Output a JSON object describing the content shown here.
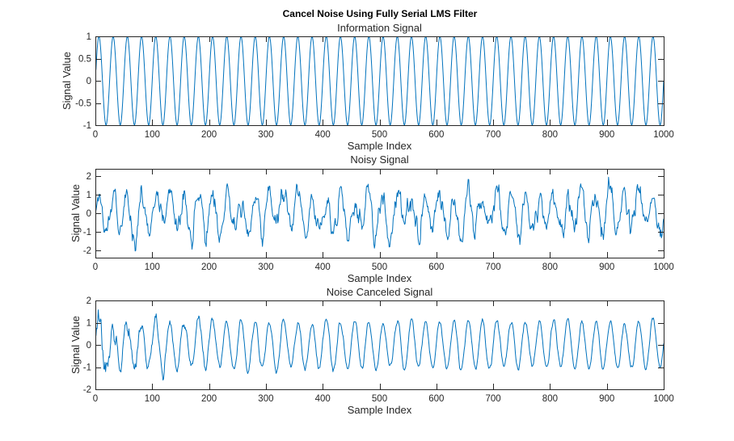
{
  "figure": {
    "title": "Cancel Noise Using Fully Serial LMS Filter"
  },
  "colors": {
    "line": "#0072BD",
    "axis": "#262626",
    "background": "#ffffff"
  },
  "chart_data": [
    {
      "type": "line",
      "title": "Information Signal",
      "xlabel": "Sample Index",
      "ylabel": "Signal Value",
      "xlim": [
        0,
        1000
      ],
      "ylim": [
        -1,
        1
      ],
      "xticks": [
        "0",
        "100",
        "200",
        "300",
        "400",
        "500",
        "600",
        "700",
        "800",
        "900",
        "1000"
      ],
      "yticks": [
        "-1",
        "-0.5",
        "0",
        "0.5",
        "1"
      ],
      "grid": false,
      "x": {
        "start": 1,
        "end": 1000,
        "count": 1000
      },
      "series": [
        {
          "model": "sine",
          "amplitude": 1,
          "period_samples": 25,
          "phase": 0
        }
      ]
    },
    {
      "type": "line",
      "title": "Noisy Signal",
      "xlabel": "Sample Index",
      "ylabel": "Signal Value",
      "xlim": [
        0,
        1000
      ],
      "ylim": [
        -2.4,
        2.4
      ],
      "xticks": [
        "0",
        "100",
        "200",
        "300",
        "400",
        "500",
        "600",
        "700",
        "800",
        "900",
        "1000"
      ],
      "yticks": [
        "-2",
        "-1",
        "0",
        "1",
        "2"
      ],
      "grid": false,
      "x": {
        "start": 1,
        "end": 1000,
        "count": 1000
      },
      "series": [
        {
          "model": "sine_plus_noise",
          "amplitude": 1,
          "period_samples": 25,
          "phase": 0,
          "noise_std": 0.6,
          "approx_range": [
            -2.4,
            2.4
          ]
        }
      ]
    },
    {
      "type": "line",
      "title": "Noise Canceled Signal",
      "xlabel": "Sample Index",
      "ylabel": "Signal Value",
      "xlim": [
        0,
        1000
      ],
      "ylim": [
        -2,
        2
      ],
      "xticks": [
        "0",
        "100",
        "200",
        "300",
        "400",
        "500",
        "600",
        "700",
        "800",
        "900",
        "1000"
      ],
      "yticks": [
        "-2",
        "-1",
        "0",
        "1",
        "2"
      ],
      "grid": false,
      "x": {
        "start": 1,
        "end": 1000,
        "count": 1000
      },
      "series": [
        {
          "model": "sine_plus_decaying_noise",
          "amplitude": 1.05,
          "period_samples": 25,
          "phase": 0,
          "initial_noise_std": 0.6,
          "residual_noise_std": 0.12,
          "convergence_samples": 250,
          "approx_range": [
            -1.7,
            1.8
          ]
        }
      ]
    }
  ]
}
